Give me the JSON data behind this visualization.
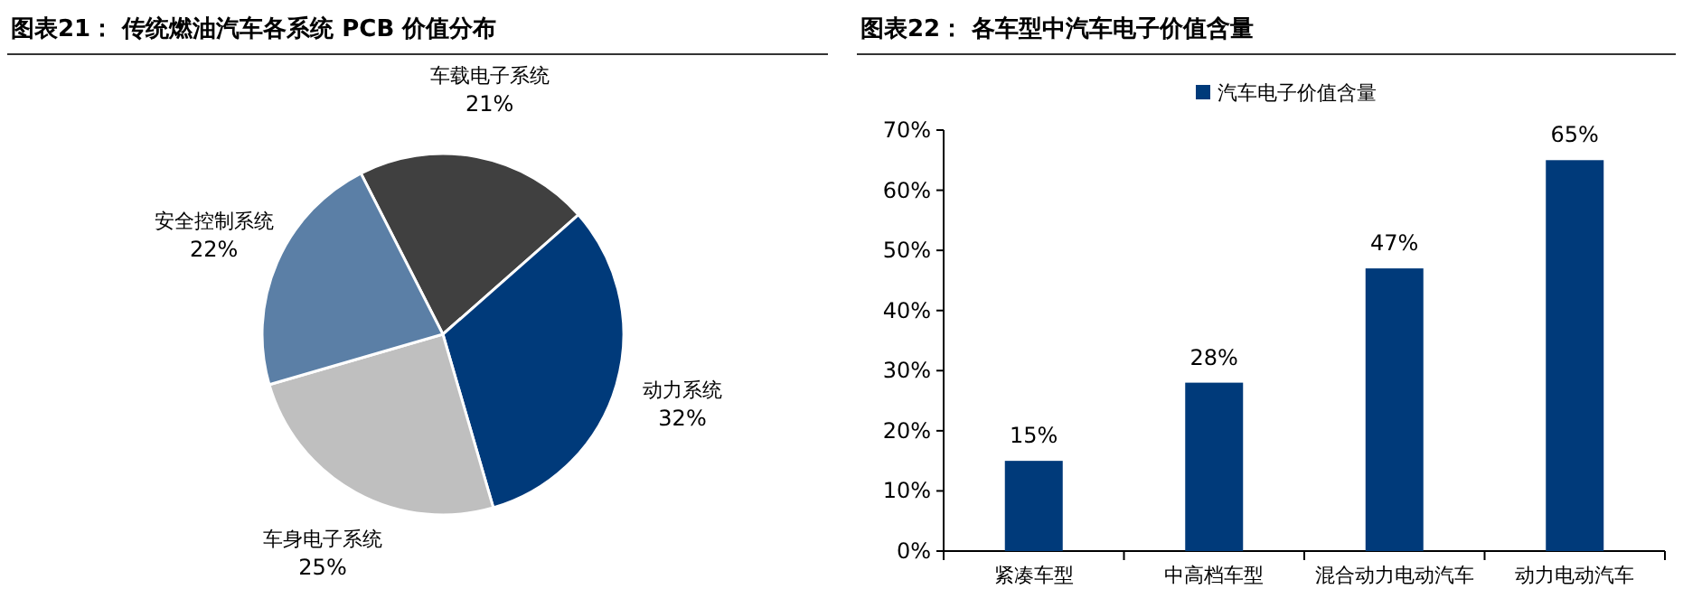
{
  "chart_data": [
    {
      "type": "pie",
      "title": "图表21：  传统燃油汽车各系统 PCB 价值分布",
      "categories": [
        "车载电子系统",
        "动力系统",
        "车身电子系统",
        "安全控制系统"
      ],
      "values": [
        21,
        32,
        25,
        22
      ],
      "colors": [
        "#404040",
        "#003a7a",
        "#bfbfbf",
        "#5b7fa6"
      ],
      "value_labels": [
        "21%",
        "32%",
        "25%",
        "22%"
      ]
    },
    {
      "type": "bar",
      "title": "图表22：  各车型中汽车电子价值含量",
      "categories": [
        "紧凑车型",
        "中高档车型",
        "混合动力电动汽车",
        "动力电动汽车"
      ],
      "series": [
        {
          "name": "汽车电子价值含量",
          "color": "#003a7a",
          "values": [
            15,
            28,
            47,
            65
          ],
          "value_labels": [
            "15%",
            "28%",
            "47%",
            "65%"
          ]
        }
      ],
      "ylim": [
        0,
        70
      ],
      "yticks": [
        {
          "value": 0,
          "label": "0%"
        },
        {
          "value": 10,
          "label": "10%"
        },
        {
          "value": 20,
          "label": "20%"
        },
        {
          "value": 30,
          "label": "30%"
        },
        {
          "value": 40,
          "label": "40%"
        },
        {
          "value": 50,
          "label": "50%"
        },
        {
          "value": 60,
          "label": "60%"
        },
        {
          "value": 70,
          "label": "70%"
        }
      ],
      "legend": "top",
      "grid": false
    }
  ]
}
